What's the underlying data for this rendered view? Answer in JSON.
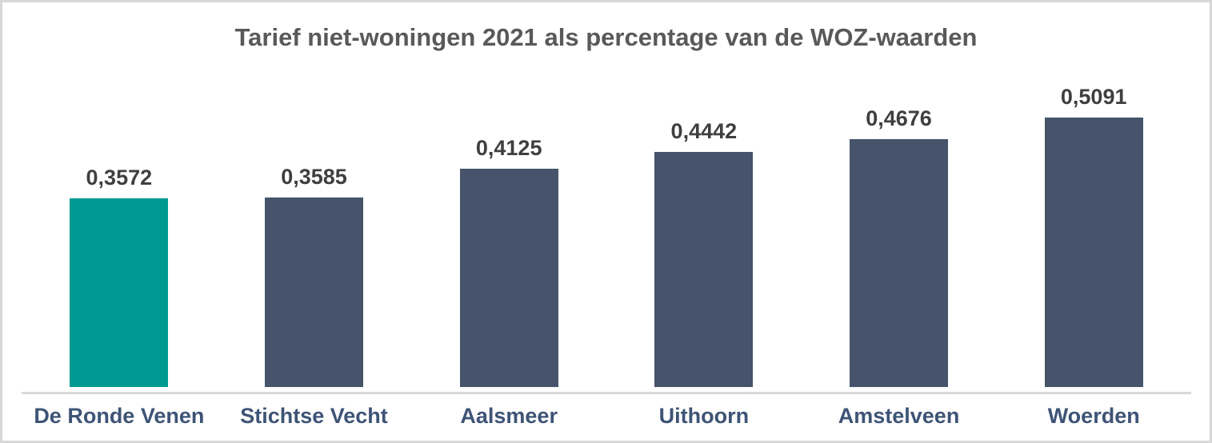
{
  "chart_data": {
    "type": "bar",
    "title": "Tarief niet-woningen 2021 als percentage van de WOZ-waarden",
    "xlabel": "",
    "ylabel": "",
    "categories": [
      "De Ronde Venen",
      "Stichtse Vecht",
      "Aalsmeer",
      "Uithoorn",
      "Amstelveen",
      "Woerden"
    ],
    "values": [
      0.3572,
      0.3585,
      0.4125,
      0.4442,
      0.4676,
      0.5091
    ],
    "value_labels": [
      "0,3572",
      "0,3585",
      "0,4125",
      "0,4442",
      "0,4676",
      "0,5091"
    ],
    "ylim": [
      0,
      0.55
    ],
    "grid": "off",
    "legend": "none",
    "decimal_separator": ",",
    "highlighted_category": "De Ronde Venen",
    "colors": {
      "bar_default": "#46536a",
      "bar_highlight": "#009a92",
      "title_text": "#595959",
      "value_label_text": "#3f3f3f",
      "category_label_text": "#3e5476",
      "axis_line": "#d9d9d9",
      "frame_border": "#d7d7d7",
      "background": "#ffffff"
    },
    "points": [
      {
        "category": "De Ronde Venen",
        "value": 0.3572,
        "value_label": "0,3572",
        "highlighted": true
      },
      {
        "category": "Stichtse Vecht",
        "value": 0.3585,
        "value_label": "0,3585",
        "highlighted": false
      },
      {
        "category": "Aalsmeer",
        "value": 0.4125,
        "value_label": "0,4125",
        "highlighted": false
      },
      {
        "category": "Uithoorn",
        "value": 0.4442,
        "value_label": "0,4442",
        "highlighted": false
      },
      {
        "category": "Amstelveen",
        "value": 0.4676,
        "value_label": "0,4676",
        "highlighted": false
      },
      {
        "category": "Woerden",
        "value": 0.5091,
        "value_label": "0,5091",
        "highlighted": false
      }
    ]
  }
}
